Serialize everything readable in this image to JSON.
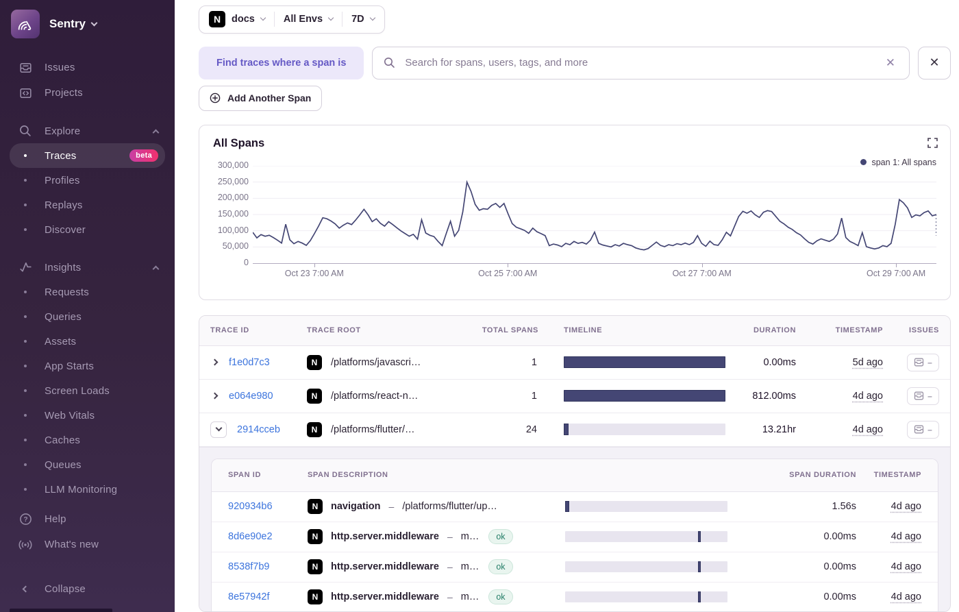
{
  "sidebar": {
    "brand": "Sentry",
    "items": [
      {
        "label": "Issues",
        "icon": "issues-icon",
        "type": "top"
      },
      {
        "label": "Projects",
        "icon": "projects-icon",
        "type": "top"
      },
      {
        "label": "Explore",
        "icon": "search-icon",
        "type": "section",
        "chevron": "up"
      },
      {
        "label": "Traces",
        "type": "sub",
        "active": true,
        "badge": "beta"
      },
      {
        "label": "Profiles",
        "type": "sub"
      },
      {
        "label": "Replays",
        "type": "sub"
      },
      {
        "label": "Discover",
        "type": "sub"
      },
      {
        "label": "Insights",
        "icon": "insights-icon",
        "type": "section",
        "chevron": "up"
      },
      {
        "label": "Requests",
        "type": "sub"
      },
      {
        "label": "Queries",
        "type": "sub"
      },
      {
        "label": "Assets",
        "type": "sub"
      },
      {
        "label": "App Starts",
        "type": "sub"
      },
      {
        "label": "Screen Loads",
        "type": "sub"
      },
      {
        "label": "Web Vitals",
        "type": "sub"
      },
      {
        "label": "Caches",
        "type": "sub"
      },
      {
        "label": "Queues",
        "type": "sub"
      },
      {
        "label": "LLM Monitoring",
        "type": "sub"
      }
    ],
    "footer_items": [
      {
        "label": "Help",
        "icon": "help-icon"
      },
      {
        "label": "What's new",
        "icon": "broadcast-icon"
      }
    ],
    "collapse_label": "Collapse"
  },
  "topbar": {
    "project": "docs",
    "project_icon": "nextjs-icon",
    "environment": "All Envs",
    "period": "7D"
  },
  "query_builder": {
    "find_label": "Find traces where a span is",
    "search_placeholder": "Search for spans, users, tags, and more",
    "add_span_label": "Add Another Span"
  },
  "chart_data": {
    "type": "line",
    "title": "All Spans",
    "legend": [
      {
        "name": "span 1: All spans",
        "color": "#444674"
      }
    ],
    "ylim": [
      0,
      300000
    ],
    "yticks": [
      {
        "label": "0",
        "value": 0
      },
      {
        "label": "50,000",
        "value": 50000
      },
      {
        "label": "100,000",
        "value": 100000
      },
      {
        "label": "150,000",
        "value": 150000
      },
      {
        "label": "200,000",
        "value": 200000
      },
      {
        "label": "250,000",
        "value": 250000
      },
      {
        "label": "300,000",
        "value": 300000
      }
    ],
    "xticks": [
      {
        "label": "Oct 23 7:00 AM",
        "pos": 0.09
      },
      {
        "label": "Oct 25 7:00 AM",
        "pos": 0.373
      },
      {
        "label": "Oct 27 7:00 AM",
        "pos": 0.657
      },
      {
        "label": "Oct 29 7:00 AM",
        "pos": 0.941
      }
    ],
    "grid": true,
    "legend_position": "top-right",
    "values": [
      95000,
      78000,
      88000,
      83000,
      86000,
      79000,
      71000,
      62000,
      120000,
      72000,
      60000,
      67000,
      62000,
      55000,
      70000,
      92000,
      115000,
      140000,
      137000,
      130000,
      121000,
      108000,
      117000,
      124000,
      119000,
      133000,
      149000,
      166000,
      149000,
      128000,
      137000,
      123000,
      114000,
      128000,
      119000,
      109000,
      99000,
      91000,
      83000,
      89000,
      74000,
      134000,
      93000,
      86000,
      82000,
      67000,
      54000,
      92000,
      129000,
      83000,
      101000,
      158000,
      250000,
      221000,
      181000,
      163000,
      168000,
      166000,
      178000,
      184000,
      172000,
      184000,
      152000,
      122000,
      111000,
      106000,
      101000,
      92000,
      108000,
      97000,
      91000,
      85000,
      54000,
      59000,
      56000,
      51000,
      61000,
      57000,
      67000,
      61000,
      64000,
      59000,
      71000,
      96000,
      61000,
      56000,
      53000,
      50000,
      57000,
      53000,
      61000,
      57000,
      54000,
      47000,
      43000,
      41000,
      45000,
      55000,
      65000,
      55000,
      51000,
      57000,
      54000,
      60000,
      57000,
      62000,
      57000,
      64000,
      85000,
      61000,
      52000,
      68000,
      57000,
      55000,
      72000,
      95000,
      84000,
      114000,
      144000,
      160000,
      154000,
      161000,
      149000,
      141000,
      157000,
      162000,
      159000,
      144000,
      129000,
      121000,
      111000,
      104000,
      94000,
      87000,
      75000,
      64000,
      59000,
      69000,
      75000,
      71000,
      67000,
      74000,
      90000,
      139000,
      79000,
      67000,
      61000,
      54000,
      94000,
      51000,
      47000,
      44000,
      47000,
      54000,
      51000,
      61000,
      120000,
      196000,
      186000,
      170000,
      141000,
      149000,
      146000,
      156000,
      161000,
      146000,
      150000
    ],
    "dashed_tail_value": 85000
  },
  "trace_table": {
    "columns": [
      "TRACE ID",
      "TRACE ROOT",
      "TOTAL SPANS",
      "TIMELINE",
      "DURATION",
      "TIMESTAMP",
      "ISSUES"
    ],
    "rows": [
      {
        "trace_id": "f1e0d7c3",
        "expanded": false,
        "root": "/platforms/javascri…",
        "total_spans": "1",
        "bar": {
          "type": "full"
        },
        "duration": "0.00ms",
        "timestamp": "5d ago"
      },
      {
        "trace_id": "e064e980",
        "expanded": false,
        "root": "/platforms/react-n…",
        "total_spans": "1",
        "bar": {
          "type": "full"
        },
        "duration": "812.00ms",
        "timestamp": "4d ago"
      },
      {
        "trace_id": "2914cceb",
        "expanded": true,
        "root": "/platforms/flutter/…",
        "total_spans": "24",
        "bar": {
          "type": "segment",
          "left": "0%",
          "width": "3%"
        },
        "duration": "13.21hr",
        "timestamp": "4d ago"
      }
    ],
    "span_table": {
      "columns": [
        "SPAN ID",
        "SPAN DESCRIPTION",
        "SPAN DURATION",
        "TIMESTAMP"
      ],
      "desc_separator": "–",
      "rows": [
        {
          "span_id": "920934b6",
          "op": "navigation",
          "target": "/platforms/flutter/up…",
          "status": null,
          "bar": {
            "left": "0%",
            "width": "2.5%"
          },
          "duration": "1.56s",
          "timestamp": "4d ago"
        },
        {
          "span_id": "8d6e90e2",
          "op": "http.server.middleware",
          "target": "m…",
          "status": "ok",
          "bar": {
            "left": "82%",
            "width": "1.6%"
          },
          "duration": "0.00ms",
          "timestamp": "4d ago"
        },
        {
          "span_id": "8538f7b9",
          "op": "http.server.middleware",
          "target": "m…",
          "status": "ok",
          "bar": {
            "left": "82%",
            "width": "1.6%"
          },
          "duration": "0.00ms",
          "timestamp": "4d ago"
        },
        {
          "span_id": "8e57942f",
          "op": "http.server.middleware",
          "target": "m…",
          "status": "ok",
          "bar": {
            "left": "82%",
            "width": "1.6%"
          },
          "duration": "0.00ms",
          "timestamp": "4d ago"
        }
      ]
    }
  },
  "colors": {
    "accent": "#6559c5",
    "chart_line": "#444674",
    "link": "#3c74dd",
    "badge_gradient_start": "#c83fa4",
    "badge_gradient_end": "#f1316e",
    "ok_bg": "#e9f5ef",
    "ok_text": "#257e68",
    "sidebar_top": "#2f1d3a",
    "sidebar_bottom": "#3e2c4e"
  }
}
